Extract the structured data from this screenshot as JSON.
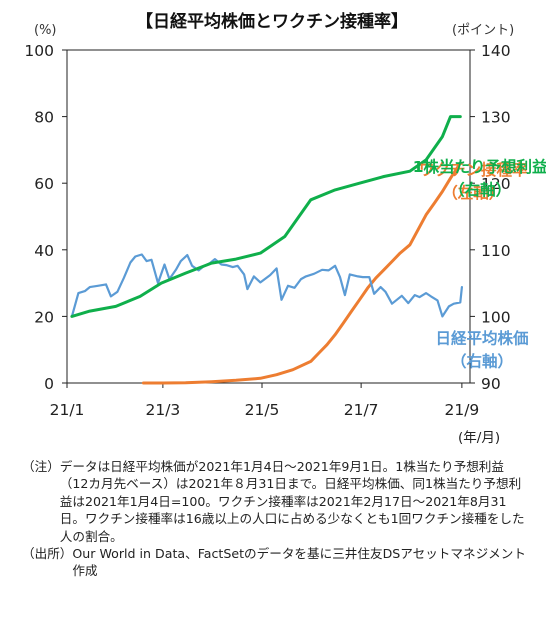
{
  "chart_data": {
    "type": "line",
    "title": "【日経平均株価とワクチン接種率】",
    "left_axis_unit": "(%)",
    "right_axis_unit": "(ポイント)",
    "x_axis_unit": "(年/月)",
    "left_ylim": [
      0,
      100
    ],
    "right_ylim": [
      90,
      140
    ],
    "left_ticks": [
      "0",
      "20",
      "40",
      "60",
      "80",
      "100"
    ],
    "right_ticks": [
      "90",
      "100",
      "110",
      "120",
      "130",
      "140"
    ],
    "x_range": [
      "2021-01-01",
      "2021-09-06"
    ],
    "x_ticks": [
      {
        "label": "21/1",
        "date": "2021-01-01"
      },
      {
        "label": "21/3",
        "date": "2021-03-01"
      },
      {
        "label": "21/5",
        "date": "2021-05-01"
      },
      {
        "label": "21/7",
        "date": "2021-07-01"
      },
      {
        "label": "21/9",
        "date": "2021-09-01"
      }
    ],
    "grid": false,
    "series": [
      {
        "name": "ワクチン接種率",
        "label_lines": [
          "ワクチン接種率",
          "（左軸）"
        ],
        "axis": "left",
        "color": "#ED7D31",
        "points": [
          [
            "2021-02-17",
            0.0
          ],
          [
            "2021-03-01",
            0.0
          ],
          [
            "2021-03-15",
            0.1
          ],
          [
            "2021-03-31",
            0.4
          ],
          [
            "2021-04-15",
            0.8
          ],
          [
            "2021-04-30",
            1.4
          ],
          [
            "2021-05-10",
            2.5
          ],
          [
            "2021-05-20",
            4.0
          ],
          [
            "2021-05-31",
            6.5
          ],
          [
            "2021-06-05",
            9.0
          ],
          [
            "2021-06-10",
            11.5
          ],
          [
            "2021-06-15",
            14.5
          ],
          [
            "2021-06-20",
            18.0
          ],
          [
            "2021-06-25",
            21.5
          ],
          [
            "2021-06-30",
            25.0
          ],
          [
            "2021-07-05",
            28.5
          ],
          [
            "2021-07-10",
            31.5
          ],
          [
            "2021-07-15",
            34.0
          ],
          [
            "2021-07-20",
            36.5
          ],
          [
            "2021-07-25",
            39.0
          ],
          [
            "2021-07-31",
            41.5
          ],
          [
            "2021-08-05",
            46.0
          ],
          [
            "2021-08-10",
            50.5
          ],
          [
            "2021-08-15",
            54.0
          ],
          [
            "2021-08-20",
            57.5
          ],
          [
            "2021-08-25",
            61.5
          ],
          [
            "2021-08-31",
            66.0
          ]
        ]
      },
      {
        "name": "日経平均株価",
        "label_lines": [
          "日経平均株価",
          "（右軸）"
        ],
        "axis": "right",
        "color": "#5B9BD5",
        "points": [
          [
            "2021-01-04",
            100.0
          ],
          [
            "2021-01-08",
            103.5
          ],
          [
            "2021-01-12",
            103.8
          ],
          [
            "2021-01-15",
            104.4
          ],
          [
            "2021-01-20",
            104.6
          ],
          [
            "2021-01-25",
            104.8
          ],
          [
            "2021-01-28",
            103.0
          ],
          [
            "2021-02-01",
            103.7
          ],
          [
            "2021-02-05",
            105.8
          ],
          [
            "2021-02-09",
            108.1
          ],
          [
            "2021-02-12",
            109.0
          ],
          [
            "2021-02-16",
            109.3
          ],
          [
            "2021-02-19",
            108.3
          ],
          [
            "2021-02-22",
            108.5
          ],
          [
            "2021-02-26",
            105.0
          ],
          [
            "2021-03-02",
            107.8
          ],
          [
            "2021-03-05",
            105.6
          ],
          [
            "2021-03-09",
            107.0
          ],
          [
            "2021-03-12",
            108.3
          ],
          [
            "2021-03-16",
            109.2
          ],
          [
            "2021-03-19",
            107.6
          ],
          [
            "2021-03-23",
            106.9
          ],
          [
            "2021-03-26",
            107.5
          ],
          [
            "2021-03-30",
            108.0
          ],
          [
            "2021-04-02",
            108.6
          ],
          [
            "2021-04-06",
            107.8
          ],
          [
            "2021-04-09",
            107.7
          ],
          [
            "2021-04-13",
            107.4
          ],
          [
            "2021-04-16",
            107.6
          ],
          [
            "2021-04-20",
            106.3
          ],
          [
            "2021-04-22",
            104.1
          ],
          [
            "2021-04-26",
            106.0
          ],
          [
            "2021-04-30",
            105.1
          ],
          [
            "2021-05-06",
            106.2
          ],
          [
            "2021-05-10",
            107.2
          ],
          [
            "2021-05-13",
            102.5
          ],
          [
            "2021-05-17",
            104.6
          ],
          [
            "2021-05-21",
            104.3
          ],
          [
            "2021-05-25",
            105.6
          ],
          [
            "2021-05-28",
            106.0
          ],
          [
            "2021-06-02",
            106.4
          ],
          [
            "2021-06-07",
            107.0
          ],
          [
            "2021-06-11",
            106.9
          ],
          [
            "2021-06-15",
            107.6
          ],
          [
            "2021-06-18",
            105.9
          ],
          [
            "2021-06-21",
            103.2
          ],
          [
            "2021-06-24",
            106.3
          ],
          [
            "2021-06-29",
            106.0
          ],
          [
            "2021-07-02",
            105.9
          ],
          [
            "2021-07-06",
            105.9
          ],
          [
            "2021-07-09",
            103.4
          ],
          [
            "2021-07-13",
            104.4
          ],
          [
            "2021-07-16",
            103.7
          ],
          [
            "2021-07-20",
            101.9
          ],
          [
            "2021-07-26",
            103.1
          ],
          [
            "2021-07-30",
            102.0
          ],
          [
            "2021-08-03",
            103.2
          ],
          [
            "2021-08-06",
            102.9
          ],
          [
            "2021-08-10",
            103.5
          ],
          [
            "2021-08-13",
            103.0
          ],
          [
            "2021-08-17",
            102.4
          ],
          [
            "2021-08-20",
            100.0
          ],
          [
            "2021-08-24",
            101.5
          ],
          [
            "2021-08-27",
            101.9
          ],
          [
            "2021-08-31",
            102.1
          ],
          [
            "2021-09-01",
            104.4
          ]
        ]
      },
      {
        "name": "1株当たり予想利益",
        "label_lines": [
          "1株当たり予想利益",
          "（右軸）"
        ],
        "axis": "right",
        "color": "#0FAF4B",
        "points": [
          [
            "2021-01-04",
            100.0
          ],
          [
            "2021-01-15",
            100.8
          ],
          [
            "2021-01-31",
            101.5
          ],
          [
            "2021-02-15",
            103.0
          ],
          [
            "2021-02-28",
            105.0
          ],
          [
            "2021-03-15",
            106.5
          ],
          [
            "2021-03-31",
            108.0
          ],
          [
            "2021-04-15",
            108.6
          ],
          [
            "2021-04-30",
            109.5
          ],
          [
            "2021-05-15",
            112.0
          ],
          [
            "2021-05-31",
            117.5
          ],
          [
            "2021-06-15",
            119.0
          ],
          [
            "2021-06-30",
            120.0
          ],
          [
            "2021-07-15",
            121.0
          ],
          [
            "2021-07-31",
            121.8
          ],
          [
            "2021-08-10",
            123.5
          ],
          [
            "2021-08-20",
            127.0
          ],
          [
            "2021-08-25",
            130.0
          ],
          [
            "2021-08-31",
            130.0
          ]
        ]
      }
    ]
  },
  "notes": [
    {
      "key": "（注）",
      "text": "データは日経平均株価が2021年1月4日～2021年9月1日。1株当たり予想利益（12カ月先ベース）は2021年８月31日まで。日経平均株価、同1株当たり予想利益は2021年1月4日=100。ワクチン接種率は2021年2月17日～2021年8月31日。ワクチン接種率は16歳以上の人口に占める少なくとも1回ワクチン接種をした人の割合。"
    },
    {
      "key": "（出所）",
      "text": "Our World in Data、FactSetのデータを基に三井住友DSアセットマネジメント作成"
    }
  ]
}
